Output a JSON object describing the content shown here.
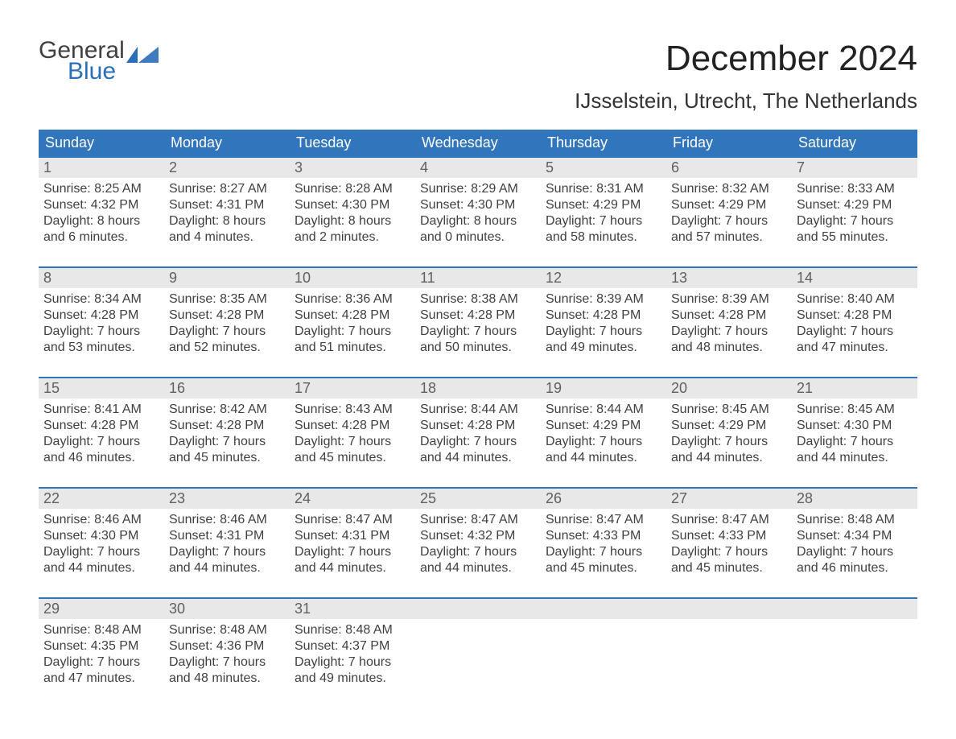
{
  "logo": {
    "text1": "General",
    "text2": "Blue",
    "accent_color": "#2a6db8",
    "text_color": "#404040"
  },
  "title": "December 2024",
  "location": "IJsselstein, Utrecht, The Netherlands",
  "header_bg": "#3176bc",
  "header_fg": "#ffffff",
  "daynum_bg": "#e8e8e8",
  "week_border": "#3176bc",
  "body_bg": "#ffffff",
  "text_color": "#404040",
  "font_family": "Arial, Helvetica, sans-serif",
  "columns": [
    "Sunday",
    "Monday",
    "Tuesday",
    "Wednesday",
    "Thursday",
    "Friday",
    "Saturday"
  ],
  "weeks": [
    [
      {
        "n": "1",
        "sunrise": "8:25 AM",
        "sunset": "4:32 PM",
        "dh": "8",
        "dm": "6"
      },
      {
        "n": "2",
        "sunrise": "8:27 AM",
        "sunset": "4:31 PM",
        "dh": "8",
        "dm": "4"
      },
      {
        "n": "3",
        "sunrise": "8:28 AM",
        "sunset": "4:30 PM",
        "dh": "8",
        "dm": "2"
      },
      {
        "n": "4",
        "sunrise": "8:29 AM",
        "sunset": "4:30 PM",
        "dh": "8",
        "dm": "0"
      },
      {
        "n": "5",
        "sunrise": "8:31 AM",
        "sunset": "4:29 PM",
        "dh": "7",
        "dm": "58"
      },
      {
        "n": "6",
        "sunrise": "8:32 AM",
        "sunset": "4:29 PM",
        "dh": "7",
        "dm": "57"
      },
      {
        "n": "7",
        "sunrise": "8:33 AM",
        "sunset": "4:29 PM",
        "dh": "7",
        "dm": "55"
      }
    ],
    [
      {
        "n": "8",
        "sunrise": "8:34 AM",
        "sunset": "4:28 PM",
        "dh": "7",
        "dm": "53"
      },
      {
        "n": "9",
        "sunrise": "8:35 AM",
        "sunset": "4:28 PM",
        "dh": "7",
        "dm": "52"
      },
      {
        "n": "10",
        "sunrise": "8:36 AM",
        "sunset": "4:28 PM",
        "dh": "7",
        "dm": "51"
      },
      {
        "n": "11",
        "sunrise": "8:38 AM",
        "sunset": "4:28 PM",
        "dh": "7",
        "dm": "50"
      },
      {
        "n": "12",
        "sunrise": "8:39 AM",
        "sunset": "4:28 PM",
        "dh": "7",
        "dm": "49"
      },
      {
        "n": "13",
        "sunrise": "8:39 AM",
        "sunset": "4:28 PM",
        "dh": "7",
        "dm": "48"
      },
      {
        "n": "14",
        "sunrise": "8:40 AM",
        "sunset": "4:28 PM",
        "dh": "7",
        "dm": "47"
      }
    ],
    [
      {
        "n": "15",
        "sunrise": "8:41 AM",
        "sunset": "4:28 PM",
        "dh": "7",
        "dm": "46"
      },
      {
        "n": "16",
        "sunrise": "8:42 AM",
        "sunset": "4:28 PM",
        "dh": "7",
        "dm": "45"
      },
      {
        "n": "17",
        "sunrise": "8:43 AM",
        "sunset": "4:28 PM",
        "dh": "7",
        "dm": "45"
      },
      {
        "n": "18",
        "sunrise": "8:44 AM",
        "sunset": "4:28 PM",
        "dh": "7",
        "dm": "44"
      },
      {
        "n": "19",
        "sunrise": "8:44 AM",
        "sunset": "4:29 PM",
        "dh": "7",
        "dm": "44"
      },
      {
        "n": "20",
        "sunrise": "8:45 AM",
        "sunset": "4:29 PM",
        "dh": "7",
        "dm": "44"
      },
      {
        "n": "21",
        "sunrise": "8:45 AM",
        "sunset": "4:30 PM",
        "dh": "7",
        "dm": "44"
      }
    ],
    [
      {
        "n": "22",
        "sunrise": "8:46 AM",
        "sunset": "4:30 PM",
        "dh": "7",
        "dm": "44"
      },
      {
        "n": "23",
        "sunrise": "8:46 AM",
        "sunset": "4:31 PM",
        "dh": "7",
        "dm": "44"
      },
      {
        "n": "24",
        "sunrise": "8:47 AM",
        "sunset": "4:31 PM",
        "dh": "7",
        "dm": "44"
      },
      {
        "n": "25",
        "sunrise": "8:47 AM",
        "sunset": "4:32 PM",
        "dh": "7",
        "dm": "44"
      },
      {
        "n": "26",
        "sunrise": "8:47 AM",
        "sunset": "4:33 PM",
        "dh": "7",
        "dm": "45"
      },
      {
        "n": "27",
        "sunrise": "8:47 AM",
        "sunset": "4:33 PM",
        "dh": "7",
        "dm": "45"
      },
      {
        "n": "28",
        "sunrise": "8:48 AM",
        "sunset": "4:34 PM",
        "dh": "7",
        "dm": "46"
      }
    ],
    [
      {
        "n": "29",
        "sunrise": "8:48 AM",
        "sunset": "4:35 PM",
        "dh": "7",
        "dm": "47"
      },
      {
        "n": "30",
        "sunrise": "8:48 AM",
        "sunset": "4:36 PM",
        "dh": "7",
        "dm": "48"
      },
      {
        "n": "31",
        "sunrise": "8:48 AM",
        "sunset": "4:37 PM",
        "dh": "7",
        "dm": "49"
      },
      null,
      null,
      null,
      null
    ]
  ],
  "labels": {
    "sunrise": "Sunrise: ",
    "sunset": "Sunset: ",
    "daylight1": "Daylight: ",
    "hours": " hours",
    "and": "and ",
    "minutes": " minutes."
  }
}
